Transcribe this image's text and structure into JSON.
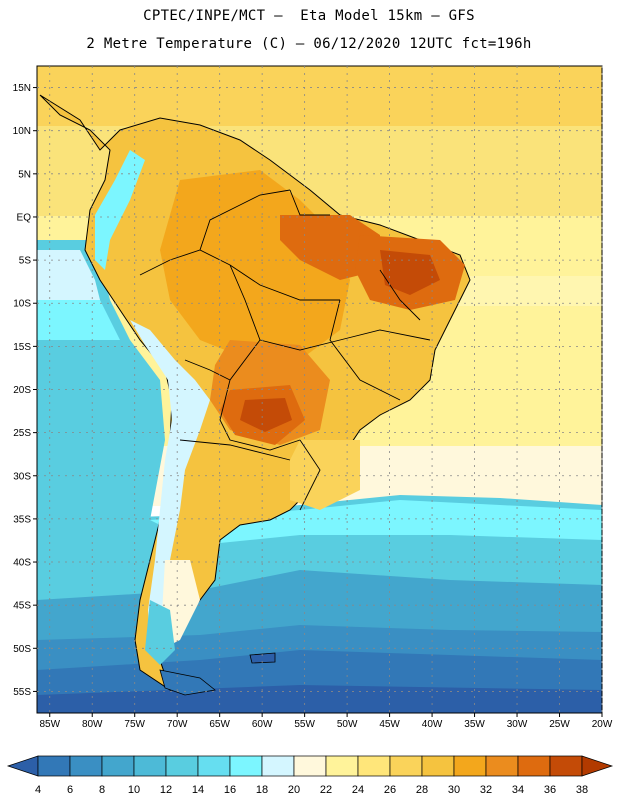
{
  "title_line1": "CPTEC/INPE/MCT —  Eta Model 15km — GFS",
  "title_line2": "2 Metre Temperature (C) — 06/12/2020 12UTC fct=196h",
  "lat_labels": [
    "15N",
    "10N",
    "5N",
    "EQ",
    "5S",
    "10S",
    "15S",
    "20S",
    "25S",
    "30S",
    "35S",
    "40S",
    "45S",
    "50S",
    "55S"
  ],
  "lat_values": [
    15,
    10,
    5,
    0,
    -5,
    -10,
    -15,
    -20,
    -25,
    -30,
    -35,
    -40,
    -45,
    -50,
    -55
  ],
  "lon_labels": [
    "85W",
    "80W",
    "75W",
    "70W",
    "65W",
    "60W",
    "55W",
    "50W",
    "45W",
    "40W",
    "35W",
    "30W",
    "25W",
    "20W"
  ],
  "lon_values": [
    -85,
    -80,
    -75,
    -70,
    -65,
    -60,
    -55,
    -50,
    -45,
    -40,
    -35,
    -30,
    -25,
    -20
  ],
  "lat_range": [
    -57.5,
    17.5
  ],
  "lon_range": [
    -86.5,
    -20
  ],
  "colorbar": {
    "labels": [
      "4",
      "6",
      "8",
      "10",
      "12",
      "14",
      "16",
      "18",
      "20",
      "22",
      "24",
      "26",
      "28",
      "30",
      "32",
      "34",
      "36",
      "38"
    ],
    "colors": [
      "#2c5fa8",
      "#3278b7",
      "#3a8fc3",
      "#43a6cd",
      "#4dbad7",
      "#59cde0",
      "#66def0",
      "#7cf6ff",
      "#d4f6ff",
      "#fff8dc",
      "#fff39a",
      "#ffe67a",
      "#fad35a",
      "#f5c33f",
      "#f3a71c",
      "#eb8c1e",
      "#de6b0f",
      "#c44b07",
      "#b23a00"
    ]
  }
}
